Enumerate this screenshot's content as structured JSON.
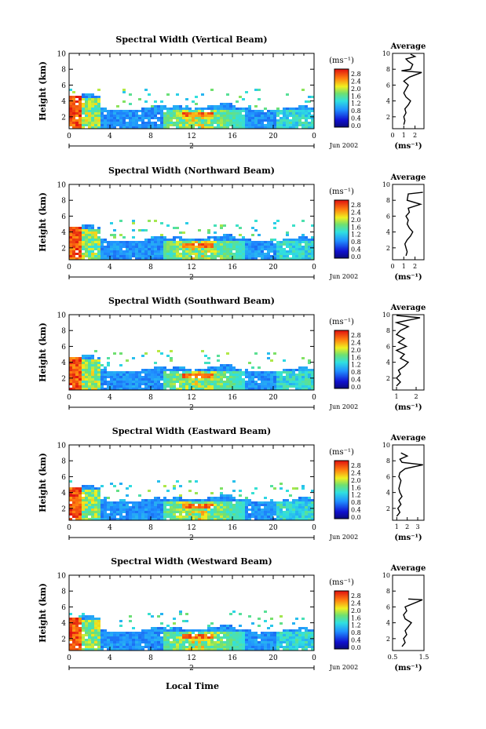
{
  "figure": {
    "x_axis_label": "Local Time",
    "date_label": "Jun 2002",
    "date_day": "2",
    "colorbar_unit": "(ms⁻¹)",
    "avg_unit": "(ms⁻¹)"
  },
  "chart_data": [
    {
      "type": "heatmap",
      "title": "Spectral Width (Vertical Beam)",
      "ylabel": "Height (km)",
      "xlabel": "Local Time",
      "x_ticks": [
        "0",
        "4",
        "8",
        "12",
        "16",
        "20",
        "0"
      ],
      "y_ticks": [
        "2",
        "4",
        "6",
        "8",
        "10"
      ],
      "xlim": [
        0,
        24
      ],
      "ylim": [
        0.5,
        10
      ],
      "colorbar": {
        "unit": "(ms⁻¹)",
        "ticks": [
          "2.8",
          "2.4",
          "2.0",
          "1.6",
          "1.2",
          "0.8",
          "0.4",
          "0.0"
        ],
        "range": [
          0.0,
          2.8
        ]
      },
      "average": {
        "title": "Average",
        "xlabel": "(ms⁻¹)",
        "x_ticks": [
          "0",
          "1",
          "2"
        ],
        "xlim": [
          0,
          2.8
        ],
        "y_ticks": [
          "2",
          "4",
          "6",
          "8",
          "10"
        ],
        "profile": [
          [
            1.0,
            1
          ],
          [
            1.1,
            1.5
          ],
          [
            1.0,
            2
          ],
          [
            1.2,
            2.5
          ],
          [
            1.1,
            3
          ],
          [
            1.4,
            3.5
          ],
          [
            1.6,
            4
          ],
          [
            1.2,
            4.5
          ],
          [
            1.0,
            5
          ],
          [
            1.2,
            5.5
          ],
          [
            1.4,
            6
          ],
          [
            1.0,
            6.5
          ],
          [
            1.5,
            7
          ],
          [
            2.6,
            7.6
          ],
          [
            0.8,
            7.8
          ],
          [
            1.6,
            8
          ],
          [
            1.8,
            8.6
          ],
          [
            1.4,
            9
          ],
          [
            1.2,
            9.3
          ],
          [
            2.0,
            9.6
          ],
          [
            1.6,
            9.9
          ]
        ]
      }
    },
    {
      "type": "heatmap",
      "title": "Spectral Width (Northward Beam)",
      "ylabel": "Height (km)",
      "xlabel": "Local Time",
      "x_ticks": [
        "0",
        "4",
        "8",
        "12",
        "16",
        "20",
        "0"
      ],
      "y_ticks": [
        "2",
        "4",
        "6",
        "8",
        "10"
      ],
      "xlim": [
        0,
        24
      ],
      "ylim": [
        0.5,
        10
      ],
      "colorbar": {
        "unit": "(ms⁻¹)",
        "ticks": [
          "2.8",
          "2.4",
          "2.0",
          "1.6",
          "1.2",
          "0.8",
          "0.4",
          "0.0"
        ],
        "range": [
          0.0,
          2.8
        ]
      },
      "average": {
        "title": "Average",
        "xlabel": "(ms⁻¹)",
        "x_ticks": [
          "0",
          "1",
          "2"
        ],
        "xlim": [
          0,
          2.8
        ],
        "y_ticks": [
          "2",
          "4",
          "6",
          "8",
          "10"
        ],
        "profile": [
          [
            1.2,
            1
          ],
          [
            1.3,
            1.5
          ],
          [
            1.2,
            2
          ],
          [
            1.1,
            2.5
          ],
          [
            1.3,
            3
          ],
          [
            1.6,
            3.5
          ],
          [
            1.8,
            4
          ],
          [
            1.5,
            4.5
          ],
          [
            1.3,
            5
          ],
          [
            1.4,
            5.5
          ],
          [
            1.2,
            6
          ],
          [
            1.5,
            6.5
          ],
          [
            1.4,
            7
          ],
          [
            2.5,
            7.5
          ],
          [
            1.3,
            8
          ],
          [
            1.4,
            8.8
          ],
          [
            2.7,
            9
          ]
        ]
      }
    },
    {
      "type": "heatmap",
      "title": "Spectral Width (Southward Beam)",
      "ylabel": "Height (km)",
      "xlabel": "Local Time",
      "x_ticks": [
        "0",
        "4",
        "8",
        "12",
        "16",
        "20",
        "0"
      ],
      "y_ticks": [
        "2",
        "4",
        "6",
        "8",
        "10"
      ],
      "xlim": [
        0,
        24
      ],
      "ylim": [
        0.5,
        10
      ],
      "colorbar": {
        "unit": "(ms⁻¹)",
        "ticks": [
          "2.8",
          "2.4",
          "2.0",
          "1.6",
          "1.2",
          "0.8",
          "0.4",
          "0.0"
        ],
        "range": [
          0.0,
          2.8
        ]
      },
      "average": {
        "title": "Average",
        "xlabel": "(ms⁻¹)",
        "x_ticks": [
          "1",
          "2"
        ],
        "xlim": [
          0.8,
          2.4
        ],
        "y_ticks": [
          "2",
          "4",
          "6",
          "8",
          "10"
        ],
        "profile": [
          [
            1.0,
            1
          ],
          [
            1.2,
            1.5
          ],
          [
            1.0,
            2
          ],
          [
            1.2,
            2.5
          ],
          [
            1.1,
            3
          ],
          [
            1.4,
            3.5
          ],
          [
            1.6,
            4
          ],
          [
            1.2,
            4.5
          ],
          [
            1.4,
            5
          ],
          [
            1.0,
            5.5
          ],
          [
            1.5,
            6
          ],
          [
            1.1,
            6.5
          ],
          [
            1.4,
            7
          ],
          [
            1.0,
            7.5
          ],
          [
            1.2,
            8
          ],
          [
            1.6,
            8.5
          ],
          [
            1.0,
            9
          ],
          [
            2.2,
            9.6
          ],
          [
            1.0,
            9.9
          ]
        ]
      }
    },
    {
      "type": "heatmap",
      "title": "Spectral Width (Eastward Beam)",
      "ylabel": "Height (km)",
      "xlabel": "Local Time",
      "x_ticks": [
        "0",
        "4",
        "8",
        "12",
        "16",
        "20",
        "0"
      ],
      "y_ticks": [
        "2",
        "4",
        "6",
        "8",
        "10"
      ],
      "xlim": [
        0,
        24
      ],
      "ylim": [
        0.5,
        10
      ],
      "colorbar": {
        "unit": "(ms⁻¹)",
        "ticks": [
          "2.8",
          "2.4",
          "2.0",
          "1.6",
          "1.2",
          "0.8",
          "0.4",
          "0.0"
        ],
        "range": [
          0.0,
          2.8
        ]
      },
      "average": {
        "title": "Average",
        "xlabel": "(ms⁻¹)",
        "x_ticks": [
          "1",
          "2",
          "3"
        ],
        "xlim": [
          0.6,
          3.6
        ],
        "y_ticks": [
          "2",
          "4",
          "6",
          "8",
          "10"
        ],
        "profile": [
          [
            1.0,
            1
          ],
          [
            1.3,
            1.5
          ],
          [
            1.1,
            2
          ],
          [
            1.4,
            2.5
          ],
          [
            1.2,
            3
          ],
          [
            1.5,
            3.5
          ],
          [
            1.3,
            4
          ],
          [
            1.2,
            4.5
          ],
          [
            1.3,
            5
          ],
          [
            1.4,
            5.5
          ],
          [
            1.2,
            6
          ],
          [
            1.3,
            6.5
          ],
          [
            1.8,
            7
          ],
          [
            3.5,
            7.5
          ],
          [
            1.5,
            7.8
          ],
          [
            1.3,
            8.2
          ],
          [
            2.0,
            8.6
          ],
          [
            1.4,
            9
          ]
        ]
      }
    },
    {
      "type": "heatmap",
      "title": "Spectral Width (Westward Beam)",
      "ylabel": "Height (km)",
      "xlabel": "Local Time",
      "x_ticks": [
        "0",
        "4",
        "8",
        "12",
        "16",
        "20",
        "0"
      ],
      "y_ticks": [
        "2",
        "4",
        "6",
        "8",
        "10"
      ],
      "xlim": [
        0,
        24
      ],
      "ylim": [
        0.5,
        10
      ],
      "colorbar": {
        "unit": "(ms⁻¹)",
        "ticks": [
          "2.8",
          "2.4",
          "2.0",
          "1.6",
          "1.2",
          "0.8",
          "0.4",
          "0.0"
        ],
        "range": [
          0.0,
          2.8
        ]
      },
      "average": {
        "title": "Average",
        "xlabel": "(ms⁻¹)",
        "x_ticks": [
          "0.5",
          "1.5"
        ],
        "xlim": [
          0.5,
          1.5
        ],
        "y_ticks": [
          "2",
          "4",
          "6",
          "8",
          "10"
        ],
        "profile": [
          [
            0.8,
            1
          ],
          [
            0.9,
            1.5
          ],
          [
            0.85,
            2
          ],
          [
            0.95,
            2.5
          ],
          [
            0.9,
            3
          ],
          [
            1.0,
            3.5
          ],
          [
            1.1,
            4
          ],
          [
            0.9,
            4.5
          ],
          [
            0.85,
            5
          ],
          [
            0.95,
            5.5
          ],
          [
            0.9,
            6
          ],
          [
            1.45,
            6.9
          ],
          [
            1.0,
            7
          ]
        ]
      }
    }
  ]
}
